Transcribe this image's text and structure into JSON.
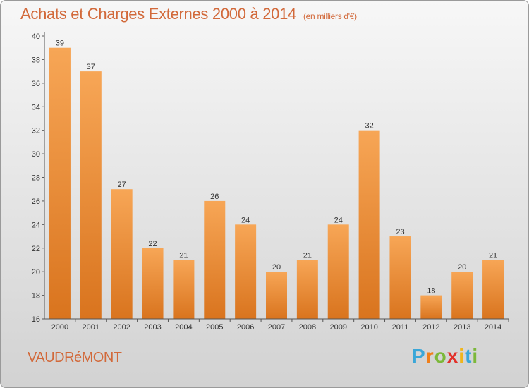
{
  "header": {
    "title": "Achats et Charges Externes 2000 à 2014",
    "subtitle": "(en milliers d'€)"
  },
  "footer": {
    "commune": "VAUDRéMONT",
    "logo_letters": [
      "P",
      "r",
      "o",
      "x",
      "i",
      "t",
      "i"
    ],
    "logo_colors": [
      "#3aa7d8",
      "#f07f1a",
      "#7cb83a",
      "#e2302a",
      "#f0b51a",
      "#3aa7d8",
      "#7cb83a"
    ]
  },
  "colors": {
    "bar_light": "#f7a656",
    "bar_dark": "#d9741e",
    "title": "#d2693a"
  },
  "chart_data": {
    "type": "bar",
    "title": "Achats et Charges Externes 2000 à 2014",
    "subtitle": "(en milliers d'€)",
    "categories": [
      "2000",
      "2001",
      "2002",
      "2003",
      "2004",
      "2005",
      "2006",
      "2007",
      "2008",
      "2009",
      "2010",
      "2011",
      "2012",
      "2013",
      "2014"
    ],
    "values": [
      39,
      37,
      27,
      22,
      21,
      26,
      24,
      20,
      21,
      24,
      32,
      23,
      18,
      20,
      21
    ],
    "ylim": [
      16,
      40
    ],
    "yticks": [
      16,
      18,
      20,
      22,
      24,
      26,
      28,
      30,
      32,
      34,
      36,
      38,
      40
    ],
    "grid": false,
    "legend": "none"
  }
}
